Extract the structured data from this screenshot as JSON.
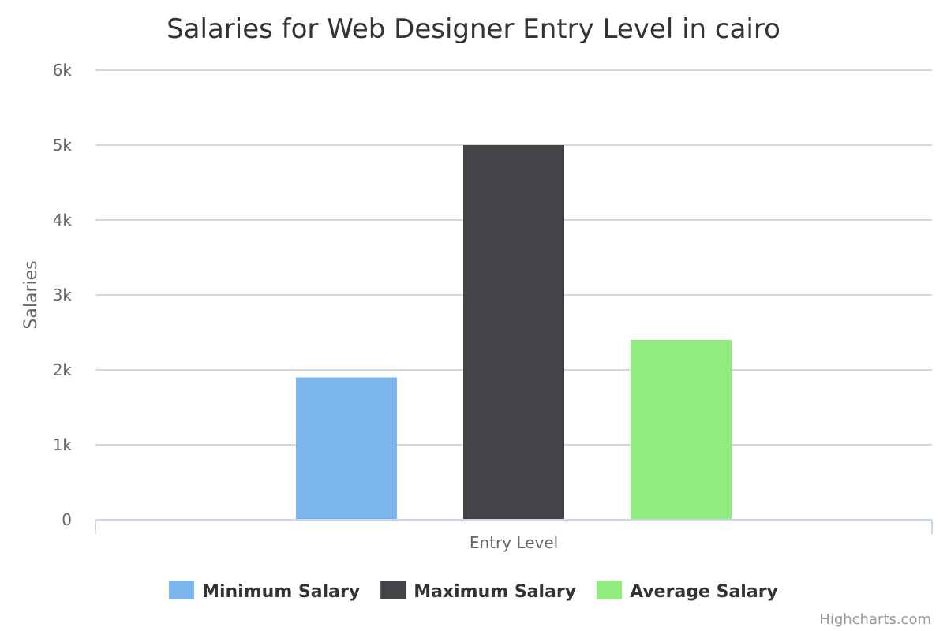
{
  "chart_data": {
    "type": "bar",
    "title": "Salaries for Web Designer Entry Level in cairo",
    "categories": [
      "Entry Level"
    ],
    "series": [
      {
        "name": "Minimum Salary",
        "values": [
          1900
        ],
        "color": "#7cb5ec"
      },
      {
        "name": "Maximum Salary",
        "values": [
          5000
        ],
        "color": "#434348"
      },
      {
        "name": "Average Salary",
        "values": [
          2400
        ],
        "color": "#90ed7d"
      }
    ],
    "ylabel": "Salaries",
    "xlabel": "",
    "ylim": [
      0,
      6000
    ],
    "yticks": [
      "0",
      "1k",
      "2k",
      "3k",
      "4k",
      "5k",
      "6k"
    ],
    "grid": true,
    "legend": "bottom-center",
    "credits": "Highcharts.com"
  }
}
